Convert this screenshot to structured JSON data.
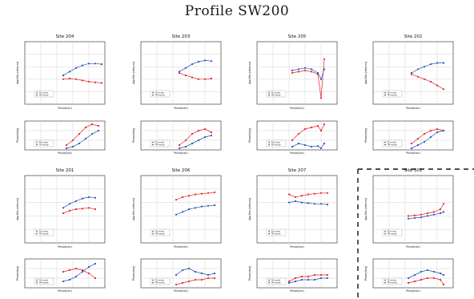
{
  "title": "Profile SW200",
  "colors": {
    "te": "#e8232a",
    "tm": "#2457b4",
    "frame": "#222222",
    "grid": "#c8c8c8"
  },
  "labels": {
    "rho_axis": "App.Res.(ohm-m)",
    "phase_axis": "Phase(deg)",
    "period_axis": "Period(sec)",
    "legend_te": "TE mode",
    "legend_tm": "TM mode"
  },
  "chart_data": [
    {
      "type": "scatter",
      "title": "Site 204",
      "x_scale": "log",
      "xlim": [
        0.001,
        100
      ],
      "series": [
        {
          "mode": "TE",
          "panel": "rho",
          "log_x": [
            -0.6,
            -0.2,
            0.2,
            0.6,
            1.0,
            1.4,
            1.8
          ],
          "log_y": [
            1.0,
            1.05,
            1.0,
            0.9,
            0.8,
            0.75,
            0.7
          ]
        },
        {
          "mode": "TM",
          "panel": "rho",
          "log_x": [
            -0.6,
            -0.2,
            0.2,
            0.6,
            1.0,
            1.4,
            1.8
          ],
          "log_y": [
            1.3,
            1.6,
            1.9,
            2.1,
            2.25,
            2.25,
            2.2
          ]
        },
        {
          "mode": "TE",
          "panel": "phase",
          "log_x": [
            -0.4,
            0.0,
            0.4,
            0.8,
            1.2,
            1.6
          ],
          "y": [
            15,
            30,
            50,
            70,
            80,
            75
          ]
        },
        {
          "mode": "TM",
          "panel": "phase",
          "log_x": [
            -0.4,
            0.0,
            0.4,
            0.8,
            1.2,
            1.6
          ],
          "y": [
            5,
            10,
            20,
            35,
            50,
            60
          ]
        }
      ]
    },
    {
      "type": "scatter",
      "title": "Site 203",
      "x_scale": "log",
      "xlim": [
        0.001,
        100
      ],
      "series": [
        {
          "mode": "TE",
          "panel": "rho",
          "log_x": [
            -0.6,
            -0.2,
            0.2,
            0.6,
            1.0,
            1.4
          ],
          "log_y": [
            1.5,
            1.3,
            1.15,
            1.0,
            1.0,
            1.05
          ]
        },
        {
          "mode": "TM",
          "panel": "rho",
          "log_x": [
            -0.6,
            -0.2,
            0.2,
            0.6,
            1.0,
            1.4
          ],
          "log_y": [
            1.6,
            1.9,
            2.2,
            2.4,
            2.5,
            2.45
          ]
        },
        {
          "mode": "TE",
          "panel": "phase",
          "log_x": [
            -0.6,
            -0.2,
            0.2,
            0.6,
            1.0,
            1.4
          ],
          "y": [
            15,
            30,
            50,
            60,
            65,
            55
          ]
        },
        {
          "mode": "TM",
          "panel": "phase",
          "log_x": [
            -0.6,
            -0.2,
            0.2,
            0.6,
            1.0,
            1.4
          ],
          "y": [
            5,
            10,
            20,
            30,
            40,
            45
          ]
        }
      ]
    },
    {
      "type": "scatter",
      "title": "Site 205",
      "x_scale": "log",
      "xlim": [
        0.001,
        100
      ],
      "series": [
        {
          "mode": "TE",
          "panel": "rho",
          "log_x": [
            -0.8,
            -0.4,
            0.0,
            0.4,
            0.8,
            1.0,
            1.2
          ],
          "log_y": [
            1.5,
            1.6,
            1.7,
            1.6,
            1.4,
            -0.5,
            2.6
          ]
        },
        {
          "mode": "TM",
          "panel": "rho",
          "log_x": [
            -0.8,
            -0.4,
            0.0,
            0.4,
            0.8,
            1.0,
            1.2
          ],
          "log_y": [
            1.7,
            1.8,
            1.9,
            1.8,
            1.5,
            1.0,
            1.8
          ]
        },
        {
          "mode": "TE",
          "panel": "phase",
          "log_x": [
            -0.8,
            -0.4,
            0.0,
            0.4,
            0.8,
            1.0,
            1.2
          ],
          "y": [
            30,
            50,
            65,
            70,
            75,
            60,
            80
          ]
        },
        {
          "mode": "TM",
          "panel": "phase",
          "log_x": [
            -0.8,
            -0.4,
            0.0,
            0.4,
            0.8,
            1.0,
            1.2
          ],
          "y": [
            10,
            20,
            15,
            10,
            12,
            5,
            20
          ]
        }
      ]
    },
    {
      "type": "scatter",
      "title": "Site 202",
      "x_scale": "log",
      "xlim": [
        0.001,
        100
      ],
      "series": [
        {
          "mode": "TE",
          "panel": "rho",
          "log_x": [
            -0.6,
            -0.2,
            0.2,
            0.6,
            1.0,
            1.4
          ],
          "log_y": [
            1.4,
            1.2,
            1.0,
            0.8,
            0.5,
            0.2
          ]
        },
        {
          "mode": "TM",
          "panel": "rho",
          "log_x": [
            -0.6,
            -0.2,
            0.2,
            0.6,
            1.0,
            1.4
          ],
          "log_y": [
            1.5,
            1.8,
            2.0,
            2.2,
            2.3,
            2.3
          ]
        },
        {
          "mode": "TE",
          "panel": "phase",
          "log_x": [
            -0.6,
            -0.2,
            0.2,
            0.6,
            1.0,
            1.4
          ],
          "y": [
            20,
            35,
            50,
            60,
            65,
            60
          ]
        },
        {
          "mode": "TM",
          "panel": "phase",
          "log_x": [
            -0.6,
            -0.2,
            0.2,
            0.6,
            1.0,
            1.4
          ],
          "y": [
            5,
            15,
            25,
            40,
            55,
            60
          ]
        }
      ]
    },
    {
      "type": "scatter",
      "title": "Site 201",
      "x_scale": "log",
      "xlim": [
        0.001,
        100
      ],
      "series": [
        {
          "mode": "TE",
          "panel": "rho",
          "log_x": [
            -0.6,
            -0.2,
            0.2,
            0.6,
            1.0,
            1.4
          ],
          "log_y": [
            1.2,
            1.4,
            1.5,
            1.55,
            1.6,
            1.5
          ]
        },
        {
          "mode": "TM",
          "panel": "rho",
          "log_x": [
            -0.6,
            -0.2,
            0.2,
            0.6,
            1.0,
            1.4
          ],
          "log_y": [
            1.6,
            1.9,
            2.1,
            2.3,
            2.4,
            2.35
          ]
        },
        {
          "mode": "TE",
          "panel": "phase",
          "log_x": [
            -0.6,
            -0.2,
            0.2,
            0.6,
            1.0,
            1.4
          ],
          "y": [
            50,
            55,
            60,
            55,
            45,
            30
          ]
        },
        {
          "mode": "TM",
          "panel": "phase",
          "log_x": [
            -0.6,
            -0.2,
            0.2,
            0.6,
            1.0,
            1.4
          ],
          "y": [
            20,
            25,
            35,
            50,
            65,
            75
          ]
        }
      ]
    },
    {
      "type": "scatter",
      "title": "Site 206",
      "x_scale": "log",
      "xlim": [
        0.001,
        100
      ],
      "series": [
        {
          "mode": "TE",
          "panel": "rho",
          "log_x": [
            -0.8,
            -0.4,
            0.0,
            0.4,
            0.8,
            1.2,
            1.6
          ],
          "log_y": [
            2.2,
            2.4,
            2.5,
            2.6,
            2.65,
            2.7,
            2.75
          ]
        },
        {
          "mode": "TM",
          "panel": "rho",
          "log_x": [
            -0.8,
            -0.4,
            0.0,
            0.4,
            0.8,
            1.2,
            1.6
          ],
          "log_y": [
            1.1,
            1.3,
            1.5,
            1.6,
            1.7,
            1.75,
            1.8
          ]
        },
        {
          "mode": "TE",
          "panel": "phase",
          "log_x": [
            -0.8,
            -0.4,
            0.0,
            0.4,
            0.8,
            1.2,
            1.6
          ],
          "y": [
            10,
            15,
            20,
            25,
            25,
            30,
            30
          ]
        },
        {
          "mode": "TM",
          "panel": "phase",
          "log_x": [
            -0.8,
            -0.4,
            0.0,
            0.4,
            0.8,
            1.2,
            1.6
          ],
          "y": [
            40,
            55,
            60,
            50,
            45,
            40,
            45
          ]
        }
      ]
    },
    {
      "type": "scatter",
      "title": "Site 207",
      "x_scale": "log",
      "xlim": [
        0.001,
        100
      ],
      "series": [
        {
          "mode": "TE",
          "panel": "rho",
          "log_x": [
            -1.0,
            -0.6,
            -0.2,
            0.2,
            0.6,
            1.0,
            1.4
          ],
          "log_y": [
            2.6,
            2.4,
            2.5,
            2.6,
            2.65,
            2.7,
            2.7
          ]
        },
        {
          "mode": "TM",
          "panel": "rho",
          "log_x": [
            -1.0,
            -0.6,
            -0.2,
            0.2,
            0.6,
            1.0,
            1.4
          ],
          "log_y": [
            2.0,
            2.1,
            2.0,
            1.95,
            1.9,
            1.9,
            1.85
          ]
        },
        {
          "mode": "TE",
          "panel": "phase",
          "log_x": [
            -1.0,
            -0.6,
            -0.2,
            0.2,
            0.6,
            1.0,
            1.4
          ],
          "y": [
            20,
            30,
            35,
            35,
            40,
            40,
            40
          ]
        },
        {
          "mode": "TM",
          "panel": "phase",
          "log_x": [
            -1.0,
            -0.6,
            -0.2,
            0.2,
            0.6,
            1.0,
            1.4
          ],
          "y": [
            15,
            20,
            25,
            25,
            25,
            30,
            30
          ]
        }
      ]
    },
    {
      "type": "scatter",
      "title": "Site 301",
      "x_scale": "log",
      "xlim": [
        0.001,
        100
      ],
      "series": [
        {
          "mode": "TE",
          "panel": "rho",
          "log_x": [
            -0.8,
            -0.4,
            0.0,
            0.4,
            0.8,
            1.2,
            1.4
          ],
          "log_y": [
            1.0,
            1.05,
            1.1,
            1.2,
            1.3,
            1.5,
            1.9
          ]
        },
        {
          "mode": "TM",
          "panel": "rho",
          "log_x": [
            -0.8,
            -0.4,
            0.0,
            0.4,
            0.8,
            1.2,
            1.4
          ],
          "log_y": [
            0.8,
            0.85,
            0.9,
            1.0,
            1.1,
            1.2,
            1.3
          ]
        },
        {
          "mode": "TE",
          "panel": "phase",
          "log_x": [
            -0.8,
            -0.4,
            0.0,
            0.4,
            0.8,
            1.2,
            1.4
          ],
          "y": [
            15,
            20,
            25,
            30,
            30,
            25,
            10
          ]
        },
        {
          "mode": "TM",
          "panel": "phase",
          "log_x": [
            -0.8,
            -0.4,
            0.0,
            0.4,
            0.8,
            1.2,
            1.4
          ],
          "y": [
            30,
            40,
            50,
            55,
            50,
            45,
            40
          ]
        }
      ]
    }
  ]
}
